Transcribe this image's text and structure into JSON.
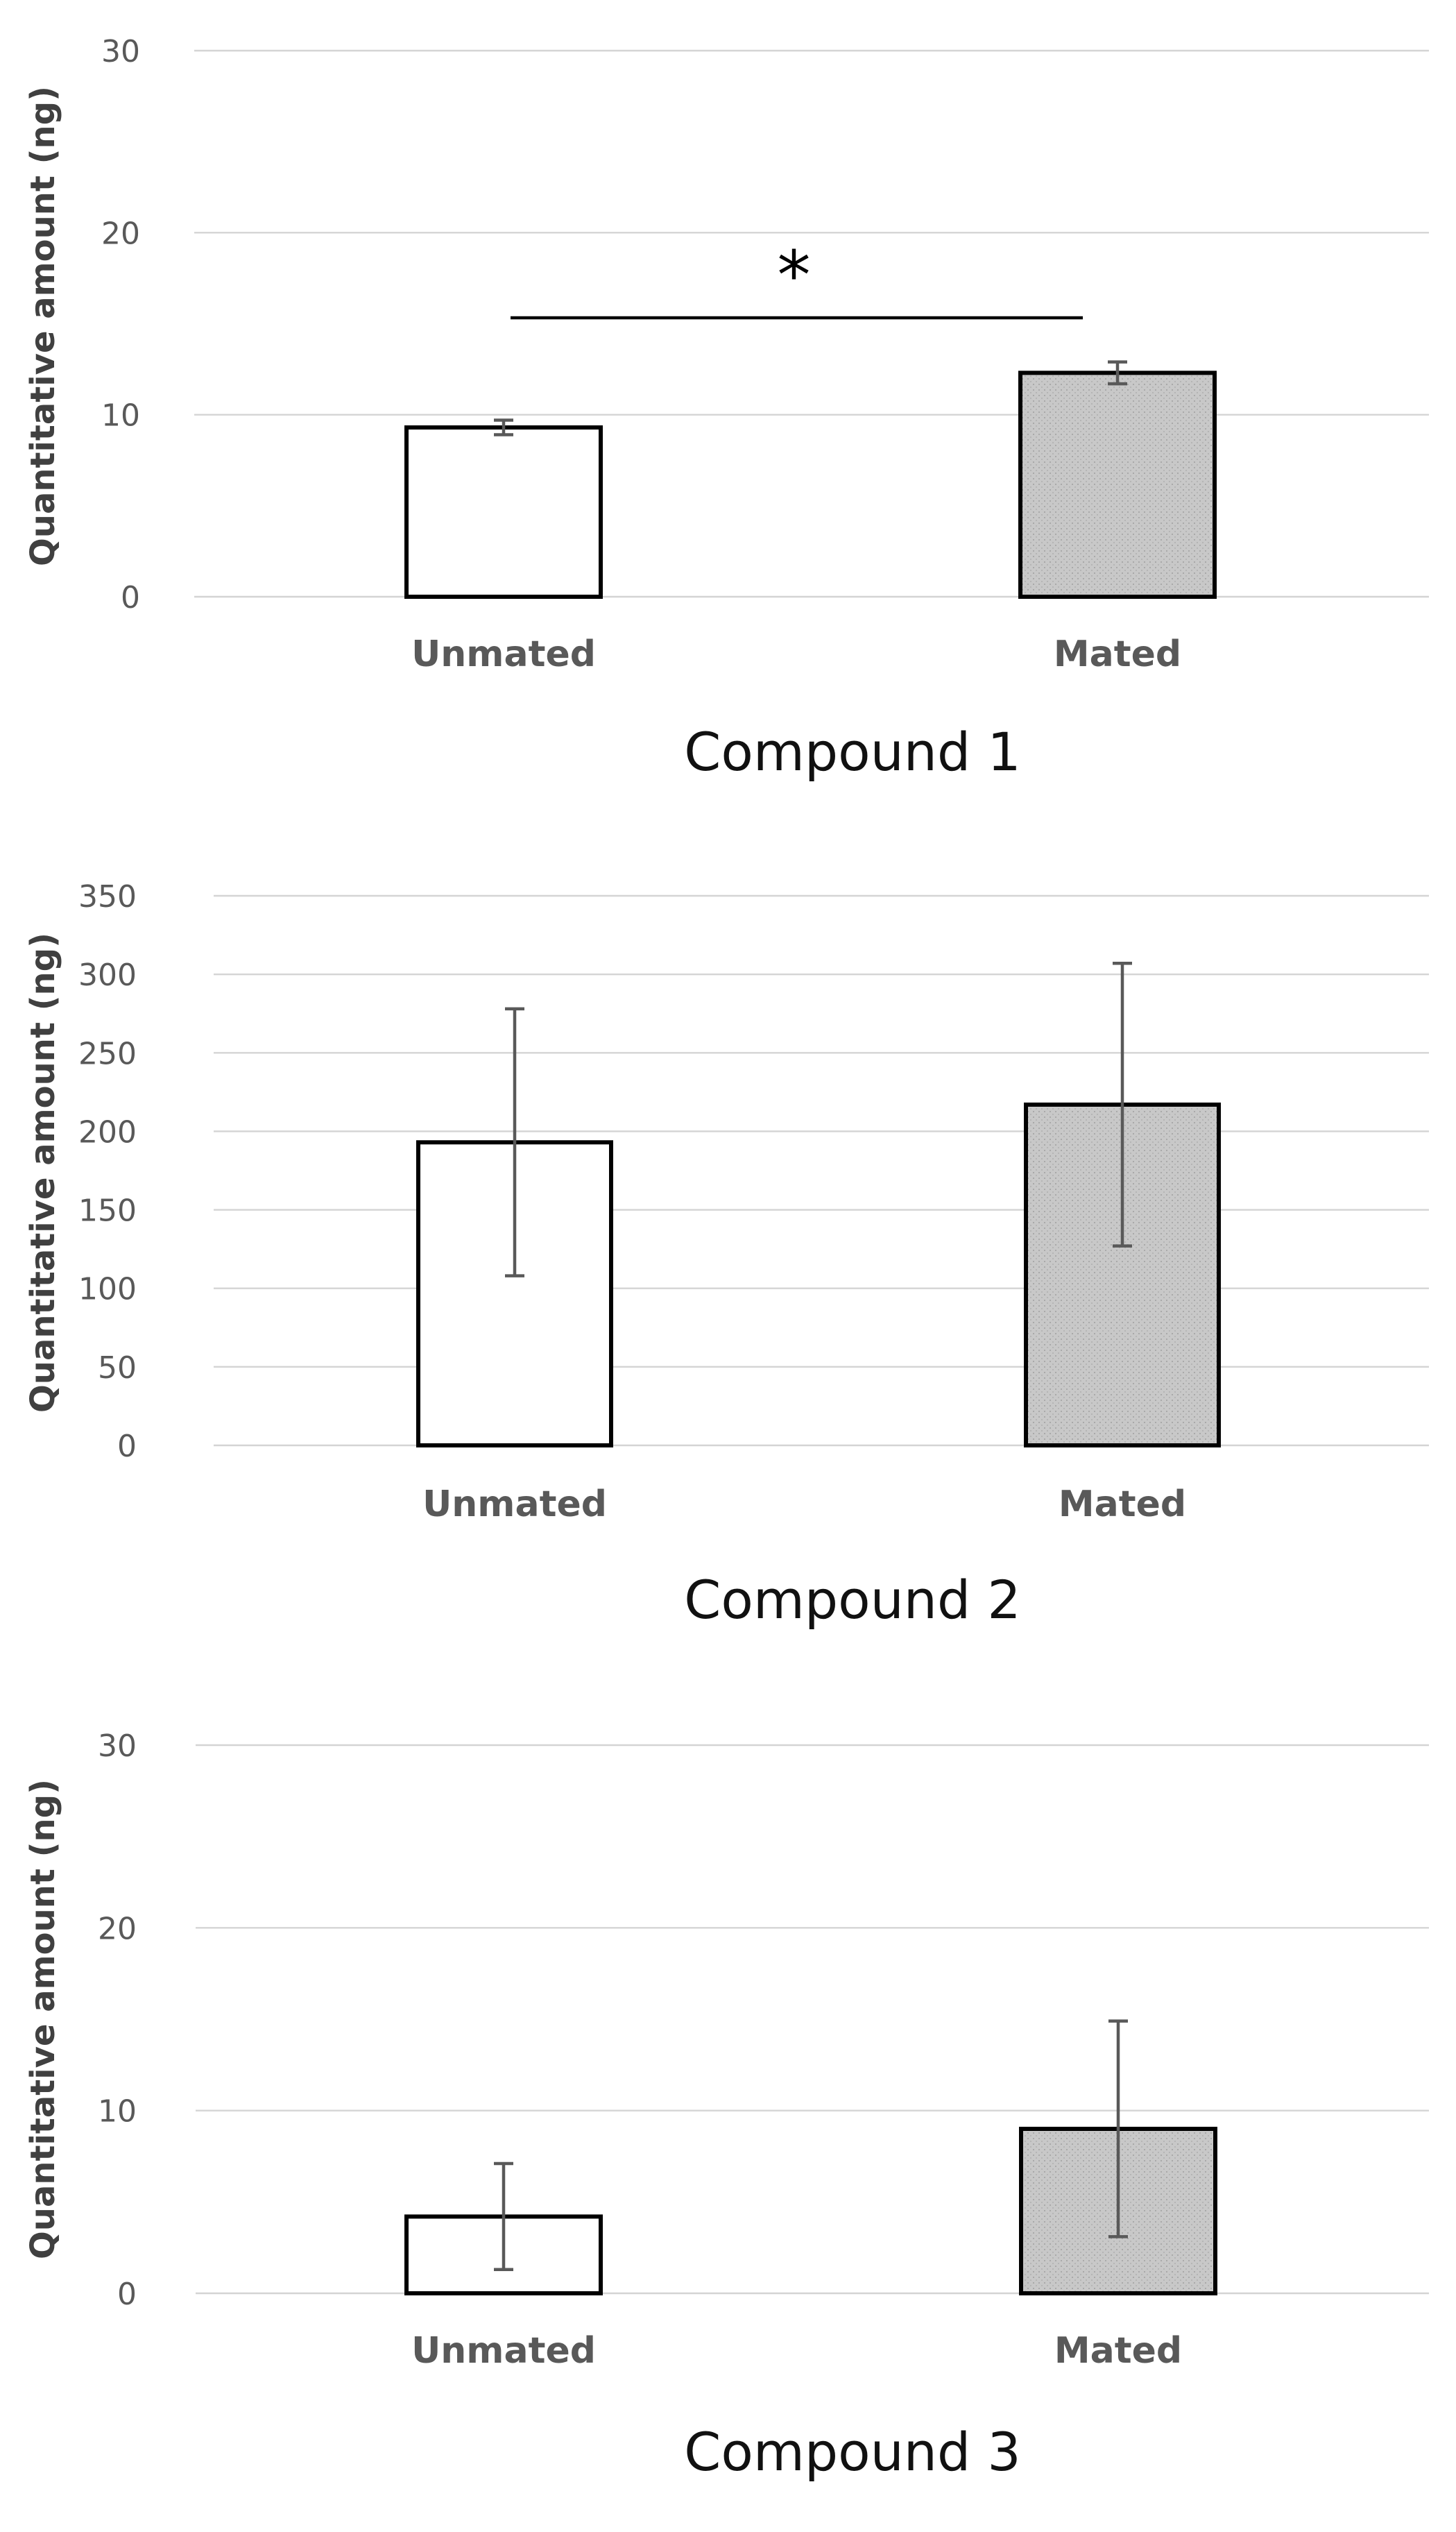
{
  "colors": {
    "unmated_fill": "#ffffff",
    "mated_fill": "#c8c8c8",
    "grid": "#d4d4d4",
    "text": "#595959"
  },
  "chart_data": [
    {
      "type": "bar",
      "title": "Compound 1",
      "xlabel": "",
      "ylabel": "Quantitative amount (ng)",
      "categories": [
        "Unmated",
        "Mated"
      ],
      "values": [
        9.3,
        12.3
      ],
      "error": [
        0.4,
        0.6
      ],
      "yticks": [
        0,
        10,
        20,
        30
      ],
      "ylim": [
        0,
        30
      ],
      "grid": true,
      "significance": {
        "between": [
          "Unmated",
          "Mated"
        ],
        "label": "*"
      }
    },
    {
      "type": "bar",
      "title": "Compound 2",
      "xlabel": "",
      "ylabel": "Quantitative amount (ng)",
      "categories": [
        "Unmated",
        "Mated"
      ],
      "values": [
        193,
        217
      ],
      "error": [
        85,
        90
      ],
      "yticks": [
        0,
        50,
        100,
        150,
        200,
        250,
        300,
        350
      ],
      "ylim": [
        0,
        350
      ],
      "grid": true
    },
    {
      "type": "bar",
      "title": "Compound 3",
      "xlabel": "",
      "ylabel": "Quantitative amount (ng)",
      "categories": [
        "Unmated",
        "Mated"
      ],
      "values": [
        4.2,
        9.0
      ],
      "error": [
        2.9,
        5.9
      ],
      "yticks": [
        0,
        10,
        20,
        30
      ],
      "ylim": [
        0,
        30
      ],
      "grid": true
    }
  ]
}
